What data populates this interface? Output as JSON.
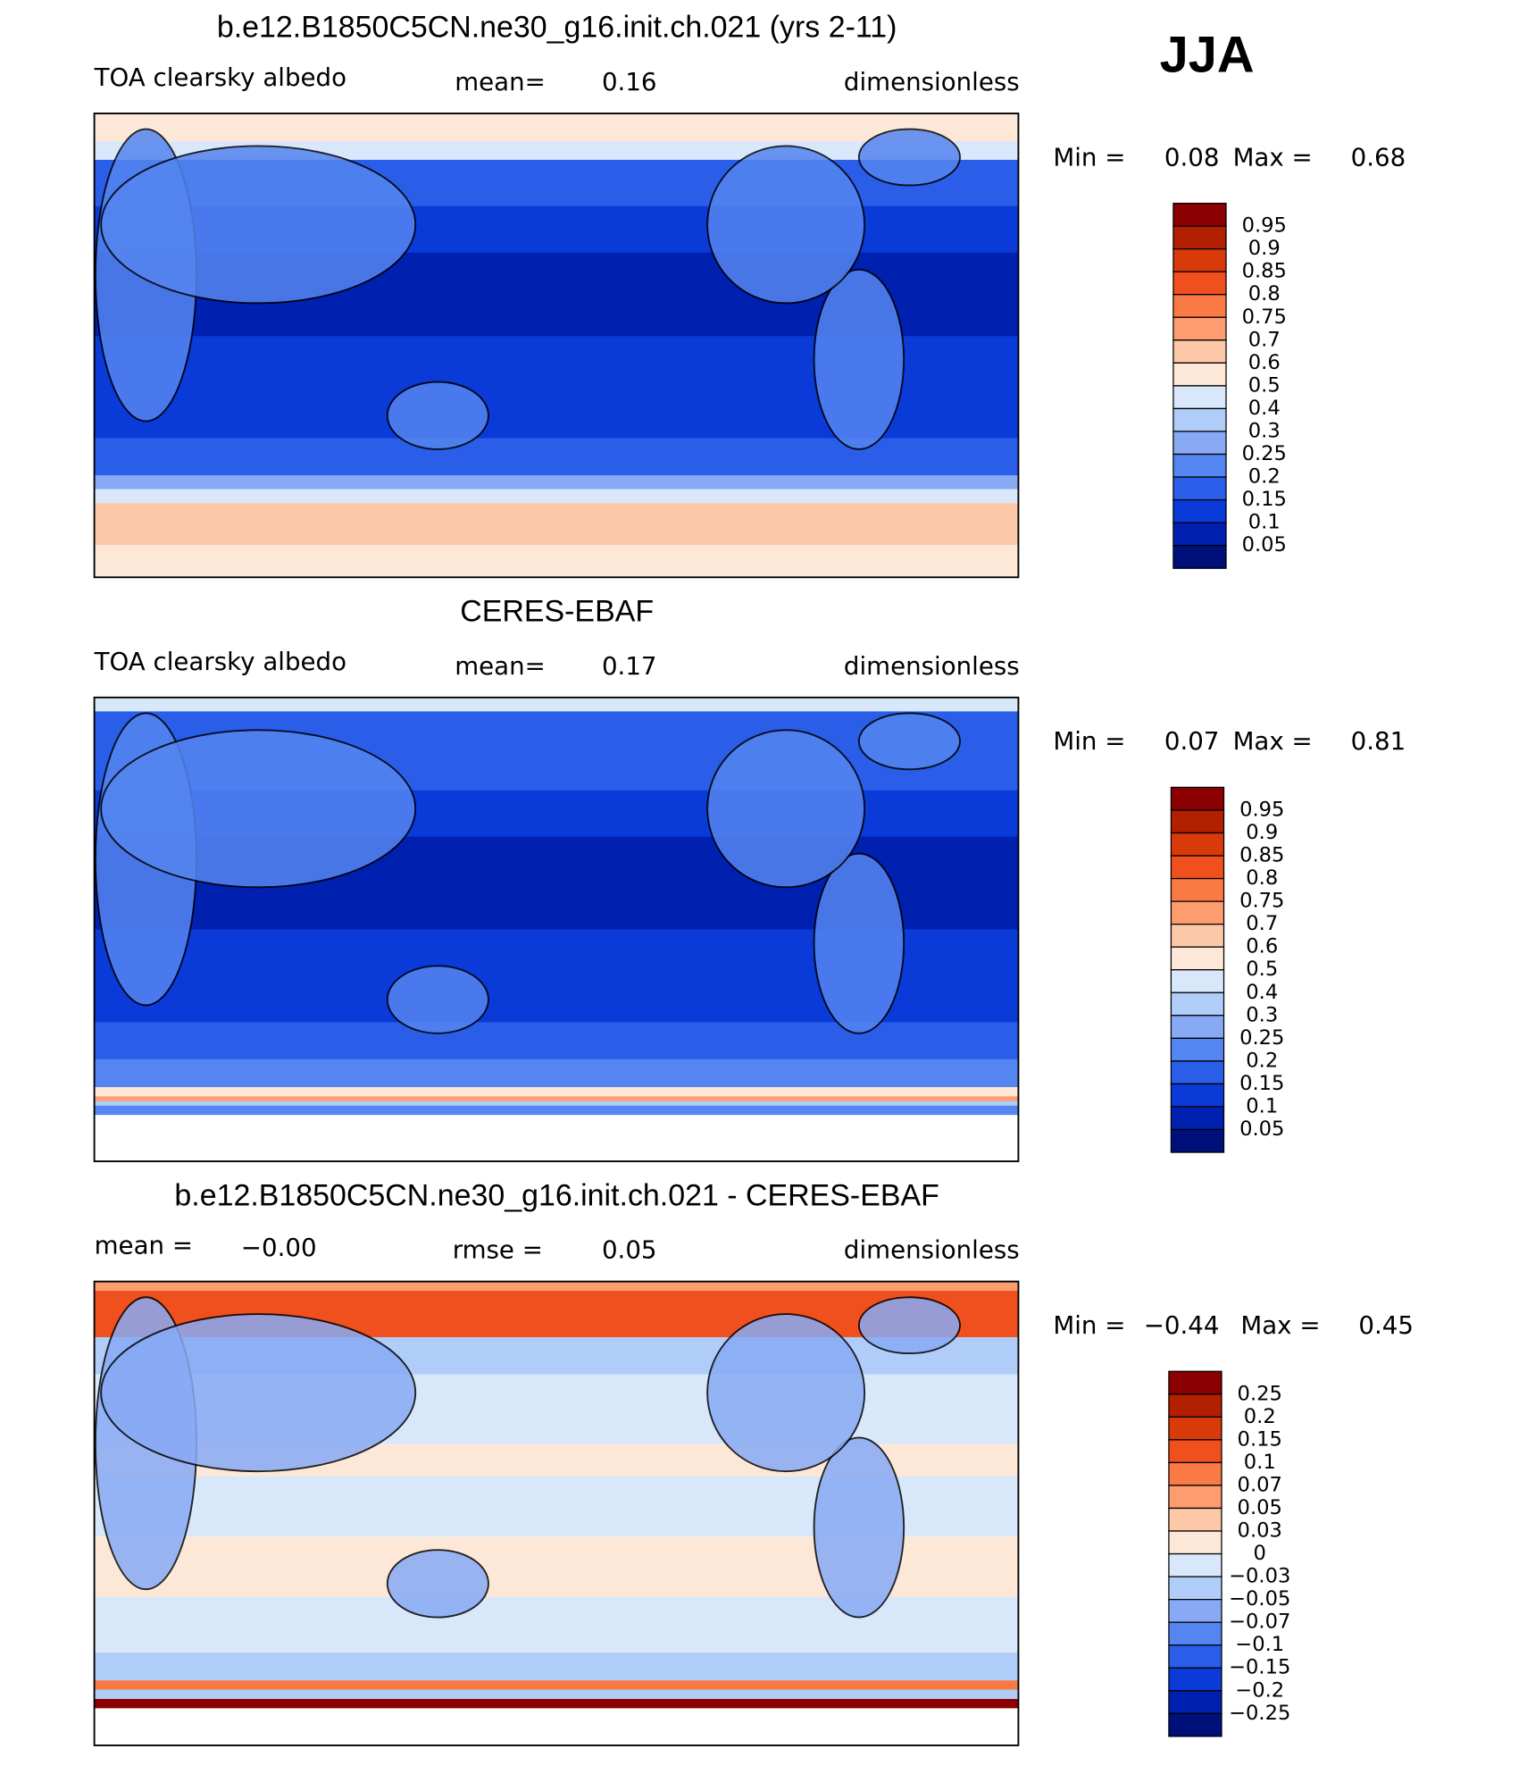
{
  "season": "JJA",
  "panels": [
    {
      "title": "b.e12.B1850C5CN.ne30_g16.init.ch.021 (yrs 2-11)",
      "left_label": "TOA clearsky albedo",
      "left_value": null,
      "center_label": "mean=",
      "center_value": "0.16",
      "units": "dimensionless",
      "min_label": "Min =",
      "min": "0.08",
      "max_label": "Max =",
      "max": "0.68",
      "colorbar": {
        "labels": [
          "0.95",
          "0.9",
          "0.85",
          "0.8",
          "0.75",
          "0.7",
          "0.6",
          "0.5",
          "0.4",
          "0.3",
          "0.25",
          "0.2",
          "0.15",
          "0.1",
          "0.05"
        ],
        "colors": [
          "#8b0000",
          "#b22000",
          "#d83a0a",
          "#f0501e",
          "#fa7a45",
          "#fd9c6e",
          "#fcc8a8",
          "#fde8d8",
          "#d8e8fa",
          "#b0ccf8",
          "#88aaf5",
          "#5585f0",
          "#2a5ee8",
          "#0a3ad8",
          "#0020b0",
          "#00107a"
        ]
      }
    },
    {
      "title": "CERES-EBAF",
      "left_label": "TOA clearsky albedo",
      "left_value": null,
      "center_label": "mean=",
      "center_value": "0.17",
      "units": "dimensionless",
      "min_label": "Min =",
      "min": "0.07",
      "max_label": "Max =",
      "max": "0.81",
      "colorbar": {
        "labels": [
          "0.95",
          "0.9",
          "0.85",
          "0.8",
          "0.75",
          "0.7",
          "0.6",
          "0.5",
          "0.4",
          "0.3",
          "0.25",
          "0.2",
          "0.15",
          "0.1",
          "0.05"
        ],
        "colors": [
          "#8b0000",
          "#b22000",
          "#d83a0a",
          "#f0501e",
          "#fa7a45",
          "#fd9c6e",
          "#fcc8a8",
          "#fde8d8",
          "#d8e8fa",
          "#b0ccf8",
          "#88aaf5",
          "#5585f0",
          "#2a5ee8",
          "#0a3ad8",
          "#0020b0",
          "#00107a"
        ]
      }
    },
    {
      "title": "b.e12.B1850C5CN.ne30_g16.init.ch.021 - CERES-EBAF",
      "left_label": "mean =",
      "left_value": "−0.00",
      "center_label": "rmse =",
      "center_value": "0.05",
      "units": "dimensionless",
      "min_label": "Min =",
      "min": "−0.44",
      "max_label": "Max =",
      "max": "0.45",
      "colorbar": {
        "labels": [
          "0.25",
          "0.2",
          "0.15",
          "0.1",
          "0.07",
          "0.05",
          "0.03",
          "0",
          "−0.03",
          "−0.05",
          "−0.07",
          "−0.1",
          "−0.15",
          "−0.2",
          "−0.25"
        ],
        "colors": [
          "#8b0000",
          "#b22000",
          "#d83a0a",
          "#f0501e",
          "#fa7a45",
          "#fd9c6e",
          "#fcc8a8",
          "#fde8d8",
          "#d8e8fa",
          "#b0ccf8",
          "#88aaf5",
          "#5585f0",
          "#2a5ee8",
          "#0a3ad8",
          "#0020b0",
          "#00107a"
        ]
      }
    }
  ]
}
